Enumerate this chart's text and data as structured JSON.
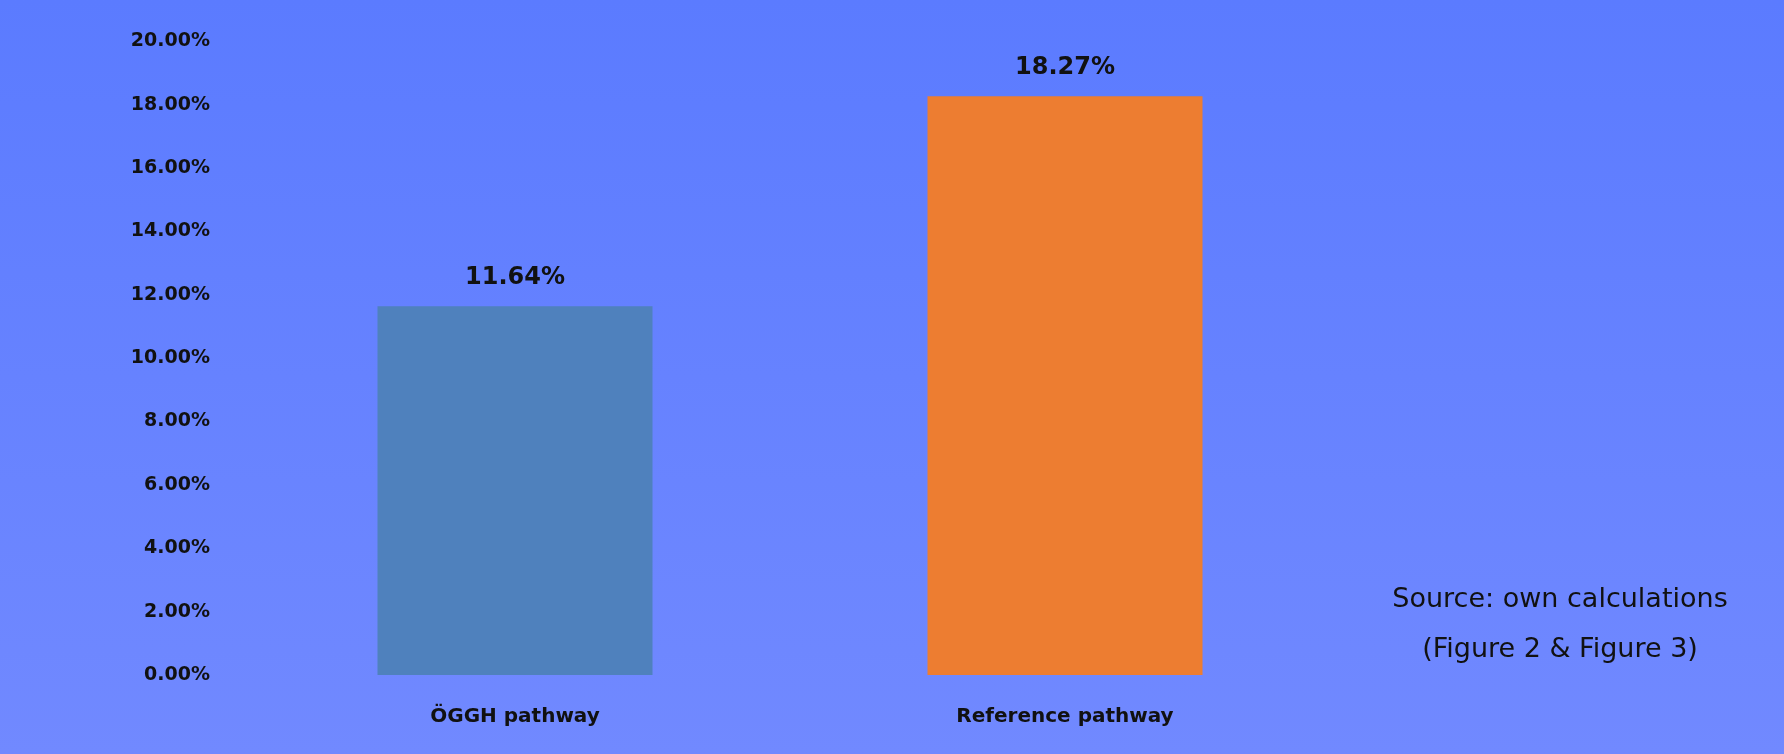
{
  "chart_data": {
    "type": "bar",
    "categories": [
      "ÖGGH pathway",
      "Reference pathway"
    ],
    "values": [
      11.64,
      18.27
    ],
    "colors": [
      "#4f81bd",
      "#ed7d31"
    ],
    "value_labels": [
      "11.64%",
      "18.27%"
    ],
    "ylim": [
      0,
      20
    ],
    "yticks": [
      {
        "value": 0,
        "label": "0.00%"
      },
      {
        "value": 2,
        "label": "2.00%"
      },
      {
        "value": 4,
        "label": "4.00%"
      },
      {
        "value": 6,
        "label": "6.00%"
      },
      {
        "value": 8,
        "label": "8.00%"
      },
      {
        "value": 10,
        "label": "10.00%"
      },
      {
        "value": 12,
        "label": "12.00%"
      },
      {
        "value": 14,
        "label": "14.00%"
      },
      {
        "value": 16,
        "label": "16.00%"
      },
      {
        "value": 18,
        "label": "18.00%"
      },
      {
        "value": 20,
        "label": "20.00%"
      }
    ],
    "grid": false,
    "legend": false,
    "annotations": [
      "Source: own calculations",
      "(Figure 2 & Figure 3)"
    ]
  }
}
